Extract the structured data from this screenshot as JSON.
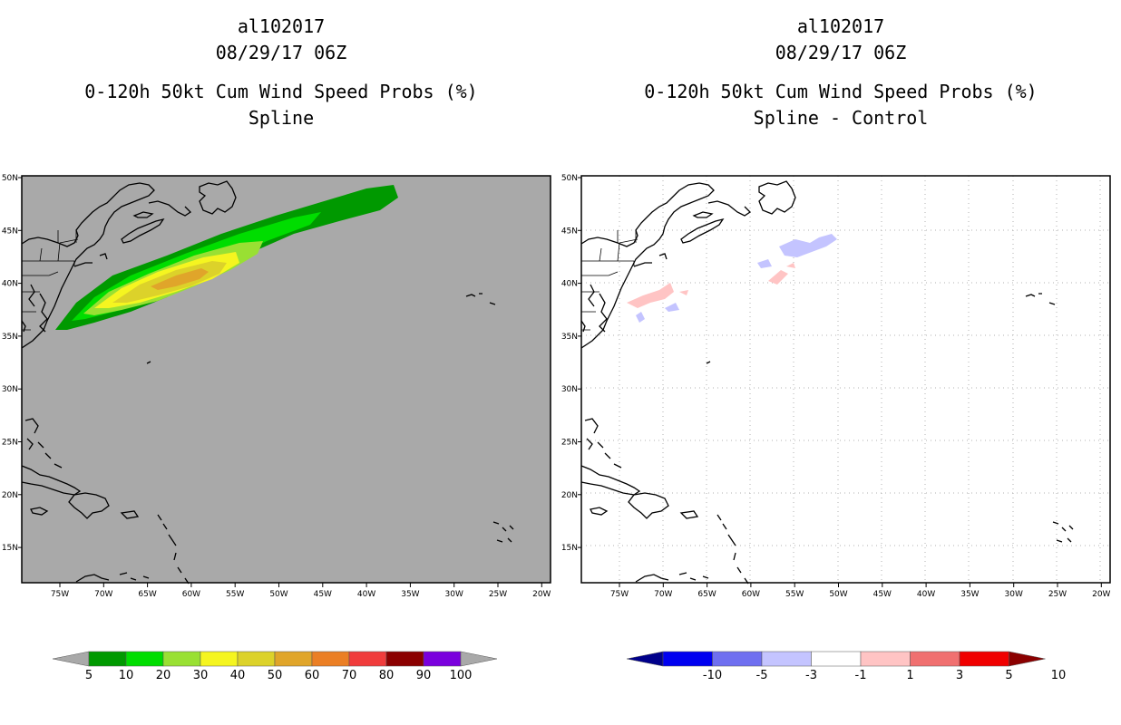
{
  "left_panel": {
    "storm_id": "al102017",
    "datetime": "08/29/17 06Z",
    "product": "0-120h 50kt Cum Wind Speed Probs (%)",
    "subtitle": "Spline",
    "background_color": "#a9a9a9",
    "legend": {
      "labels": [
        "5",
        "10",
        "20",
        "30",
        "40",
        "50",
        "60",
        "70",
        "80",
        "90",
        "100"
      ],
      "colors": [
        "#009900",
        "#00dd00",
        "#99e033",
        "#f5f520",
        "#dcd22a",
        "#e0a52a",
        "#eb7f25",
        "#f03c3c",
        "#8b0000",
        "#7a00dd"
      ]
    }
  },
  "right_panel": {
    "storm_id": "al102017",
    "datetime": "08/29/17 06Z",
    "product": "0-120h 50kt Cum Wind Speed Probs (%)",
    "subtitle": "Spline - Control",
    "background_color": "#ffffff",
    "legend": {
      "labels": [
        "-10",
        "-5",
        "-3",
        "-1",
        "1",
        "3",
        "5",
        "10"
      ],
      "colors": [
        "#00008b",
        "#0000f0",
        "#6f6ff0",
        "#c4c4ff",
        "#ffffff",
        "#ffc4c4",
        "#f07070",
        "#f00000",
        "#8b0000"
      ]
    }
  },
  "lon_ticks": [
    "75W",
    "70W",
    "65W",
    "60W",
    "55W",
    "50W",
    "45W",
    "40W",
    "35W",
    "30W",
    "25W",
    "20W"
  ],
  "lat_ticks": [
    "50N",
    "45N",
    "40N",
    "35N",
    "30N",
    "25N",
    "20N",
    "15N"
  ]
}
